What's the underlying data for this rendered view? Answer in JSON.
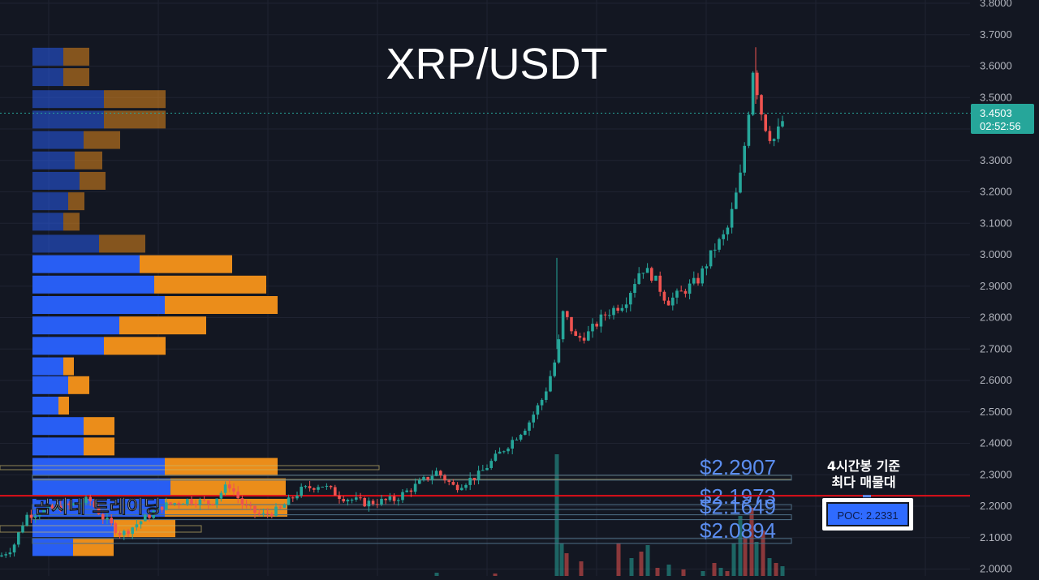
{
  "chart_data": {
    "type": "candlestick",
    "title": "XRP/USDT",
    "yaxis": {
      "range": [
        1.98,
        3.8
      ],
      "ticks": [
        "3.8000",
        "3.7000",
        "3.6000",
        "3.5000",
        "3.4000",
        "3.3000",
        "3.2000",
        "3.1000",
        "3.0000",
        "2.9000",
        "2.8000",
        "2.7000",
        "2.6000",
        "2.5000",
        "2.4000",
        "2.3000",
        "2.2000",
        "2.1000",
        "2.0000"
      ]
    },
    "last_price": {
      "value": 3.4503,
      "label": "3.4503",
      "countdown": "02:52:56",
      "color": "#26a69a"
    },
    "colors": {
      "up": "#26a69a",
      "down": "#ef5350",
      "volume_profile_buy": "#2962ff",
      "volume_profile_sell": "#f7931a",
      "level": "#5b8def",
      "poc_line": "#e0101a"
    },
    "candle_close_anchors": [
      [
        0,
        2.04
      ],
      [
        16,
        2.07
      ],
      [
        32,
        2.17
      ],
      [
        60,
        2.19
      ],
      [
        84,
        2.2
      ],
      [
        110,
        2.22
      ],
      [
        128,
        2.16
      ],
      [
        150,
        2.11
      ],
      [
        172,
        2.15
      ],
      [
        200,
        2.2
      ],
      [
        230,
        2.22
      ],
      [
        260,
        2.21
      ],
      [
        282,
        2.27
      ],
      [
        300,
        2.2
      ],
      [
        322,
        2.17
      ],
      [
        345,
        2.19
      ],
      [
        370,
        2.25
      ],
      [
        395,
        2.27
      ],
      [
        420,
        2.23
      ],
      [
        450,
        2.21
      ],
      [
        485,
        2.22
      ],
      [
        515,
        2.27
      ],
      [
        538,
        2.31
      ],
      [
        560,
        2.26
      ],
      [
        590,
        2.3
      ],
      [
        620,
        2.38
      ],
      [
        650,
        2.46
      ],
      [
        670,
        2.55
      ],
      [
        686,
        2.68
      ],
      [
        694,
        2.82
      ],
      [
        710,
        2.73
      ],
      [
        725,
        2.75
      ],
      [
        745,
        2.81
      ],
      [
        770,
        2.85
      ],
      [
        790,
        2.96
      ],
      [
        805,
        2.93
      ],
      [
        822,
        2.85
      ],
      [
        840,
        2.88
      ],
      [
        860,
        2.92
      ],
      [
        880,
        3.02
      ],
      [
        895,
        3.07
      ],
      [
        905,
        3.17
      ],
      [
        912,
        3.25
      ],
      [
        920,
        3.4
      ],
      [
        928,
        3.6
      ],
      [
        936,
        3.47
      ],
      [
        944,
        3.4
      ],
      [
        952,
        3.36
      ],
      [
        960,
        3.4
      ],
      [
        968,
        3.45
      ]
    ],
    "volume_profile": [
      {
        "price": 3.63,
        "buy": 38,
        "sell": 32
      },
      {
        "price": 3.565,
        "buy": 38,
        "sell": 32
      },
      {
        "price": 3.495,
        "buy": 88,
        "sell": 76
      },
      {
        "price": 3.43,
        "buy": 88,
        "sell": 76
      },
      {
        "price": 3.365,
        "buy": 63,
        "sell": 45
      },
      {
        "price": 3.3,
        "buy": 52,
        "sell": 34
      },
      {
        "price": 3.235,
        "buy": 58,
        "sell": 32
      },
      {
        "price": 3.17,
        "buy": 44,
        "sell": 20
      },
      {
        "price": 3.105,
        "buy": 38,
        "sell": 20
      },
      {
        "price": 3.035,
        "buy": 82,
        "sell": 57
      },
      {
        "price": 2.97,
        "buy": 132,
        "sell": 114
      },
      {
        "price": 2.905,
        "buy": 150,
        "sell": 138
      },
      {
        "price": 2.84,
        "buy": 163,
        "sell": 139
      },
      {
        "price": 2.775,
        "buy": 107,
        "sell": 107
      },
      {
        "price": 2.71,
        "buy": 88,
        "sell": 76
      },
      {
        "price": 2.645,
        "buy": 38,
        "sell": 13
      },
      {
        "price": 2.585,
        "buy": 44,
        "sell": 26
      },
      {
        "price": 2.52,
        "buy": 32,
        "sell": 13
      },
      {
        "price": 2.455,
        "buy": 63,
        "sell": 38
      },
      {
        "price": 2.39,
        "buy": 63,
        "sell": 38
      },
      {
        "price": 2.325,
        "buy": 163,
        "sell": 139
      },
      {
        "price": 2.26,
        "buy": 170,
        "sell": 142
      },
      {
        "price": 2.195,
        "buy": 163,
        "sell": 151
      },
      {
        "price": 2.13,
        "buy": 100,
        "sell": 76
      },
      {
        "price": 2.07,
        "buy": 50,
        "sell": 50
      }
    ],
    "levels": [
      {
        "price": 2.2907,
        "label": "$2.2907"
      },
      {
        "price": 2.1973,
        "label": "$2.1973"
      },
      {
        "price": 2.1649,
        "label": "$2.1649"
      },
      {
        "price": 2.0894,
        "label": "$2.0894"
      }
    ],
    "poc": {
      "price": 2.2331,
      "label": "POC: 2.2331"
    },
    "annotation": {
      "line1": "4시간봉 기준",
      "line2": "최다 매물대"
    },
    "watermark": "곰지네 트레이딩"
  }
}
